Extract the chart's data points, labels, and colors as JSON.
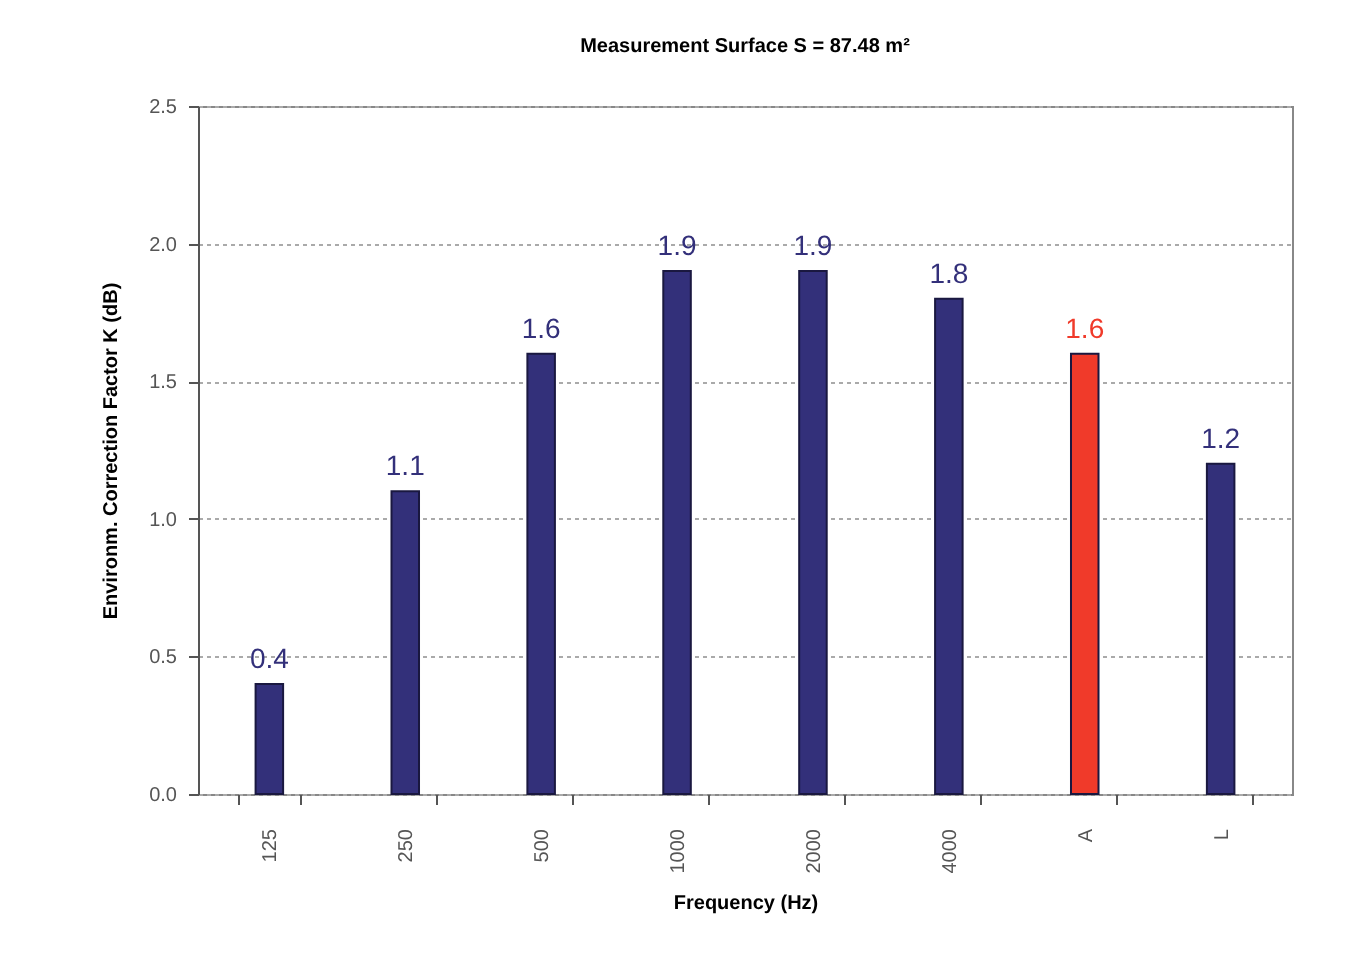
{
  "chart_data": {
    "type": "bar",
    "title": "Measurement Surface S = 87.48 m²",
    "xlabel": "Frequency (Hz)",
    "ylabel": "Environm. Correction Factor K (dB)",
    "categories": [
      "125",
      "250",
      "500",
      "1000",
      "2000",
      "4000",
      "A",
      "L"
    ],
    "values": [
      0.4,
      1.1,
      1.6,
      1.9,
      1.9,
      1.8,
      1.6,
      1.2
    ],
    "colors": [
      "#33307a",
      "#33307a",
      "#33307a",
      "#33307a",
      "#33307a",
      "#33307a",
      "#f03a2a",
      "#33307a"
    ],
    "ylim": [
      0,
      2.5
    ],
    "yticks": [
      {
        "value": 0,
        "label": "0.0"
      },
      {
        "value": 0.5,
        "label": "0.5"
      },
      {
        "value": 1,
        "label": "1.0"
      },
      {
        "value": 1.5,
        "label": "1.5"
      },
      {
        "value": 2,
        "label": "2.0"
      },
      {
        "value": 2.5,
        "label": "2.5"
      }
    ],
    "grid": "y",
    "data_labels": true
  }
}
